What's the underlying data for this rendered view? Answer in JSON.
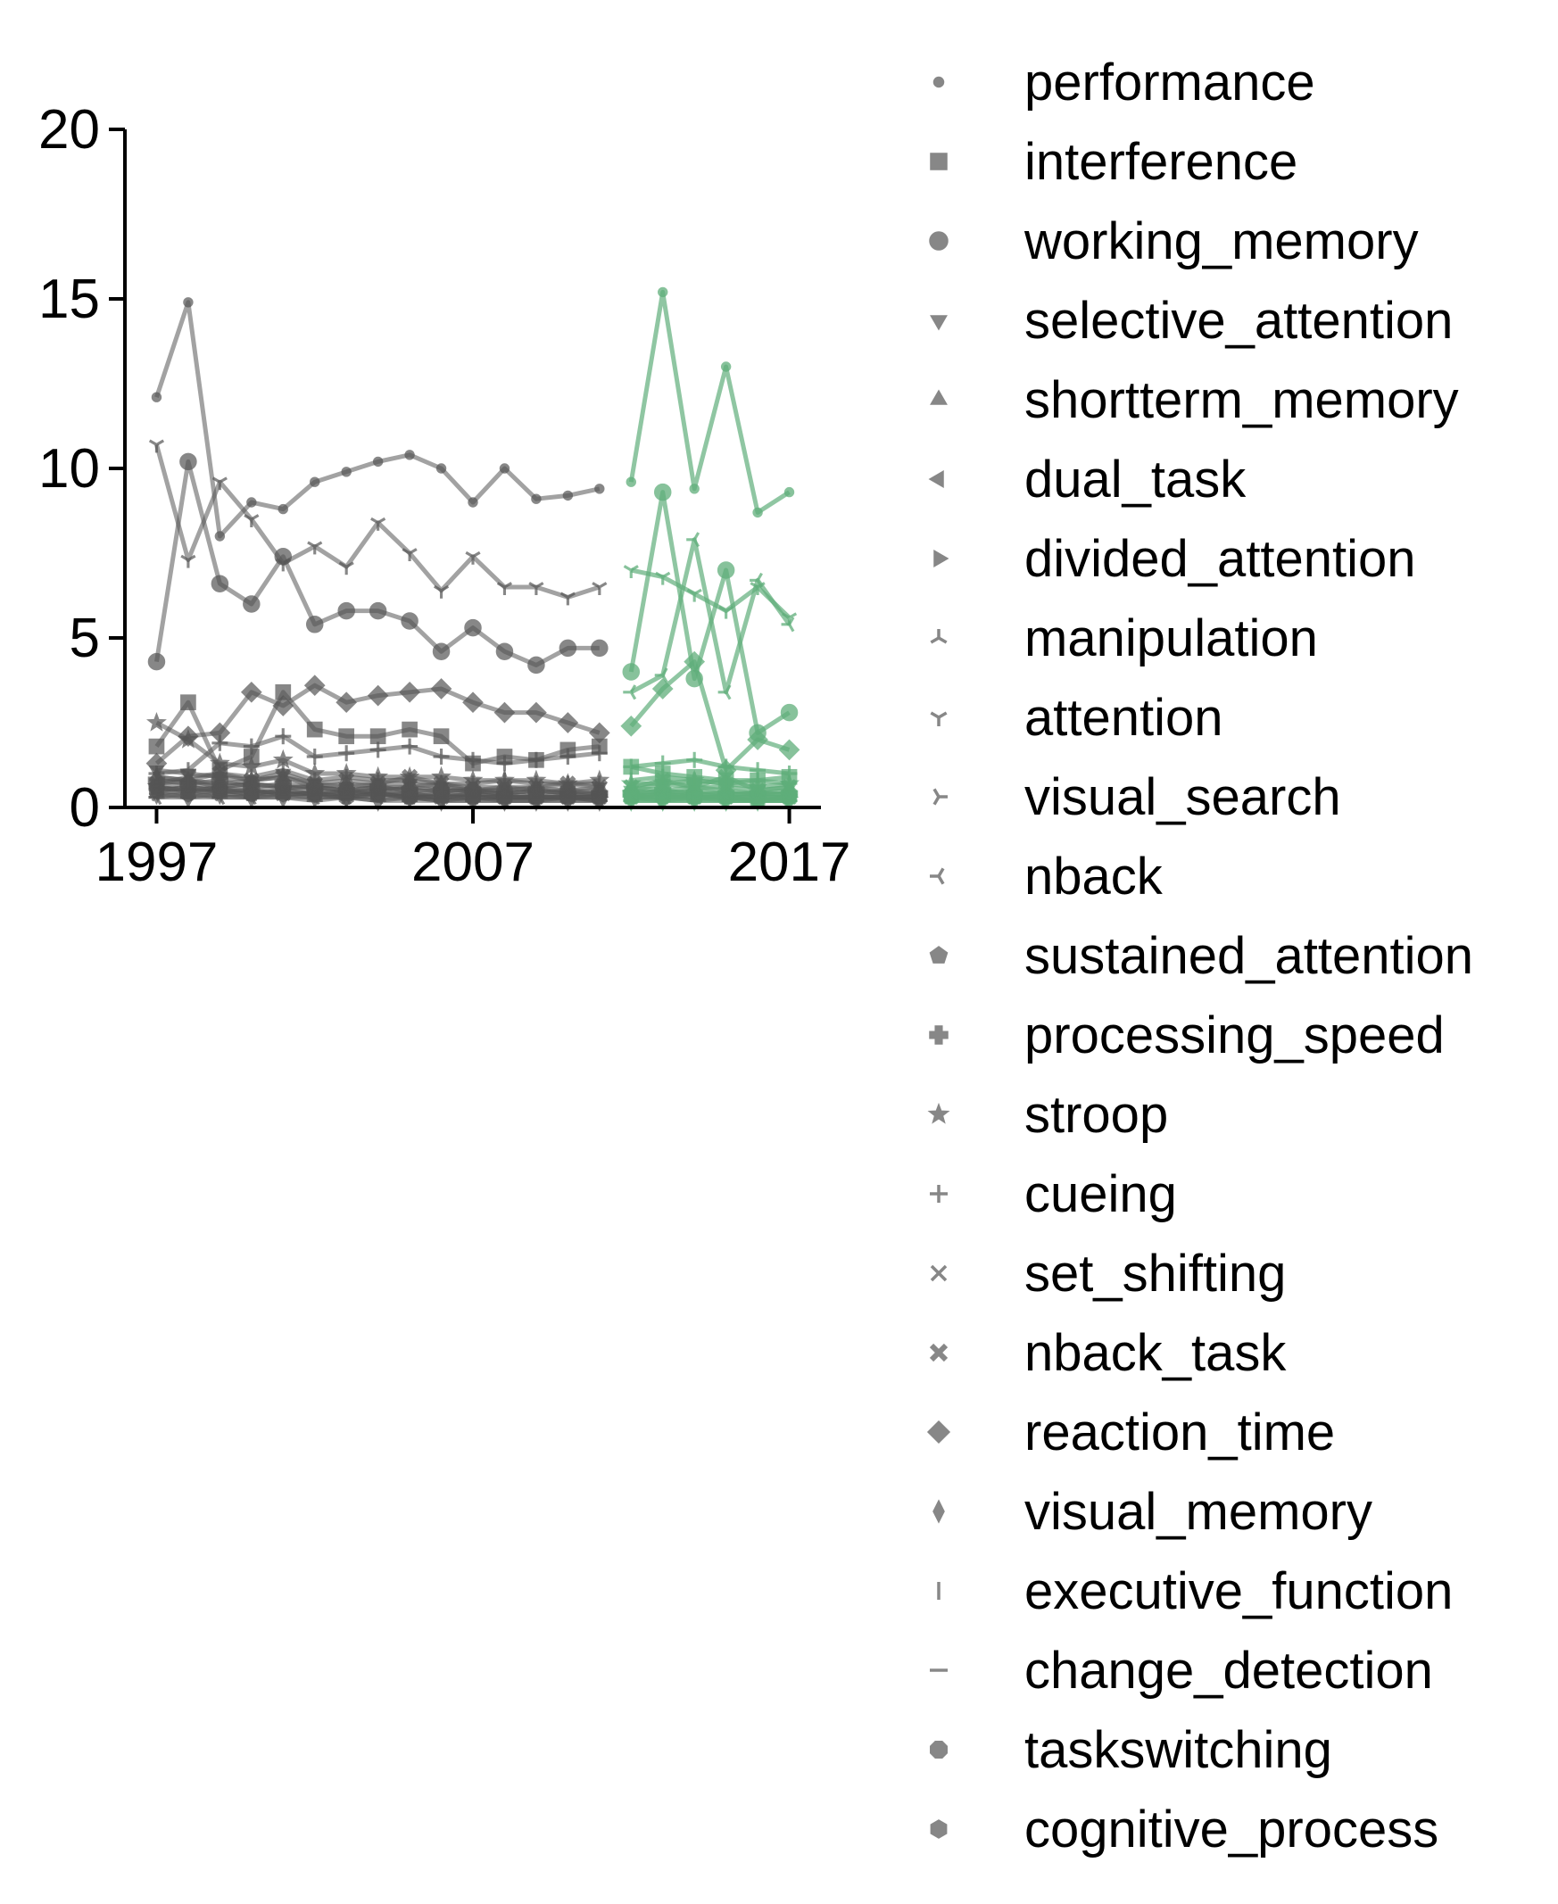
{
  "chart_data": {
    "type": "line",
    "title": "",
    "xlabel": "",
    "ylabel": "",
    "xlim": [
      1996,
      2018
    ],
    "ylim": [
      0,
      20
    ],
    "x_ticks": [
      1997,
      2007,
      2017
    ],
    "y_ticks": [
      0,
      5,
      10,
      15,
      20
    ],
    "grid": false,
    "legend_position": "right",
    "base_color": "#555555",
    "highlight_color": "#5fae7a",
    "highlight_from": 2012,
    "x": [
      1997,
      1998,
      1999,
      2000,
      2001,
      2002,
      2003,
      2004,
      2005,
      2006,
      2007,
      2008,
      2009,
      2010,
      2011,
      2012,
      2013,
      2014,
      2015,
      2016,
      2017
    ],
    "series": [
      {
        "name": "performance",
        "marker": "dot",
        "values": [
          12.1,
          14.9,
          8.0,
          9.0,
          8.8,
          9.6,
          9.9,
          10.2,
          10.4,
          10.0,
          9.0,
          10.0,
          9.1,
          9.2,
          9.4,
          9.6,
          15.2,
          9.4,
          13.0,
          8.7,
          9.3
        ]
      },
      {
        "name": "interference",
        "marker": "square",
        "values": [
          1.8,
          3.1,
          1.1,
          1.5,
          3.4,
          2.3,
          2.1,
          2.1,
          2.3,
          2.1,
          1.3,
          1.5,
          1.4,
          1.7,
          1.8,
          1.2,
          1.0,
          0.9,
          0.8,
          0.8,
          0.9
        ]
      },
      {
        "name": "working_memory",
        "marker": "circle",
        "values": [
          4.3,
          10.2,
          6.6,
          6.0,
          7.4,
          5.4,
          5.8,
          5.8,
          5.5,
          4.6,
          5.3,
          4.6,
          4.2,
          4.7,
          4.7,
          4.0,
          9.3,
          3.8,
          7.0,
          2.2,
          2.8
        ]
      },
      {
        "name": "selective_attention",
        "marker": "triangle-down",
        "values": [
          1.1,
          1.0,
          0.9,
          0.8,
          1.0,
          0.7,
          0.6,
          0.7,
          0.7,
          0.6,
          0.5,
          0.6,
          0.5,
          0.5,
          0.6,
          0.5,
          0.7,
          0.6,
          0.6,
          0.5,
          0.6
        ]
      },
      {
        "name": "shortterm_memory",
        "marker": "triangle-up",
        "values": [
          0.9,
          0.8,
          0.7,
          0.8,
          0.9,
          0.6,
          0.7,
          0.6,
          0.6,
          0.7,
          0.5,
          0.5,
          0.6,
          0.5,
          0.5,
          0.6,
          0.5,
          0.6,
          0.5,
          0.4,
          0.5
        ]
      },
      {
        "name": "dual_task",
        "marker": "triangle-left",
        "values": [
          0.7,
          0.8,
          0.6,
          0.7,
          0.6,
          0.6,
          0.5,
          0.5,
          0.6,
          0.5,
          0.5,
          0.4,
          0.5,
          0.4,
          0.4,
          0.5,
          0.4,
          0.5,
          0.4,
          0.4,
          0.4
        ]
      },
      {
        "name": "divided_attention",
        "marker": "triangle-right",
        "values": [
          0.6,
          0.5,
          0.6,
          0.5,
          0.6,
          0.5,
          0.4,
          0.5,
          0.4,
          0.4,
          0.4,
          0.4,
          0.3,
          0.4,
          0.3,
          0.4,
          0.3,
          0.4,
          0.3,
          0.3,
          0.3
        ]
      },
      {
        "name": "manipulation",
        "marker": "tri-down",
        "values": [
          0.5,
          0.6,
          0.5,
          0.5,
          0.4,
          0.4,
          0.5,
          0.4,
          0.4,
          0.3,
          0.4,
          0.3,
          0.3,
          0.3,
          0.3,
          0.3,
          0.4,
          0.3,
          0.3,
          0.3,
          0.3
        ]
      },
      {
        "name": "attention",
        "marker": "tri-up",
        "values": [
          10.7,
          7.3,
          9.6,
          8.5,
          7.2,
          7.7,
          7.1,
          8.4,
          7.5,
          6.4,
          7.4,
          6.5,
          6.5,
          6.2,
          6.5,
          7.0,
          6.8,
          6.3,
          5.8,
          6.5,
          5.6
        ]
      },
      {
        "name": "visual_search",
        "marker": "tri-left",
        "values": [
          0.4,
          0.5,
          0.4,
          0.4,
          0.5,
          0.4,
          0.3,
          0.4,
          0.3,
          0.3,
          0.3,
          0.3,
          0.3,
          0.3,
          0.2,
          0.3,
          0.2,
          0.3,
          0.2,
          0.2,
          0.2
        ]
      },
      {
        "name": "nback",
        "marker": "tri-right",
        "values": [
          0.3,
          0.4,
          0.3,
          0.3,
          0.4,
          0.3,
          0.3,
          0.3,
          0.3,
          0.2,
          0.3,
          0.2,
          0.2,
          0.3,
          0.2,
          3.4,
          3.9,
          7.9,
          3.4,
          6.7,
          5.4
        ]
      },
      {
        "name": "sustained_attention",
        "marker": "pentagon",
        "values": [
          0.6,
          0.5,
          0.5,
          0.4,
          0.5,
          0.4,
          0.4,
          0.4,
          0.3,
          0.4,
          0.3,
          0.3,
          0.3,
          0.3,
          0.3,
          0.3,
          0.3,
          0.3,
          0.3,
          0.2,
          0.3
        ]
      },
      {
        "name": "processing_speed",
        "marker": "plus-filled",
        "values": [
          0.8,
          0.7,
          0.8,
          0.6,
          0.7,
          0.6,
          0.5,
          0.6,
          0.5,
          0.5,
          0.5,
          0.4,
          0.5,
          0.4,
          0.4,
          0.4,
          0.5,
          0.4,
          0.4,
          0.4,
          0.4
        ]
      },
      {
        "name": "stroop",
        "marker": "star",
        "values": [
          2.5,
          2.0,
          1.3,
          1.2,
          1.4,
          1.0,
          1.0,
          0.9,
          0.9,
          0.9,
          0.8,
          0.8,
          0.8,
          0.7,
          0.8,
          0.7,
          0.7,
          0.8,
          0.7,
          0.6,
          0.7
        ]
      },
      {
        "name": "cueing",
        "marker": "plus",
        "values": [
          1.0,
          1.1,
          1.9,
          1.8,
          2.1,
          1.5,
          1.6,
          1.7,
          1.8,
          1.5,
          1.4,
          1.3,
          1.4,
          1.5,
          1.6,
          1.2,
          1.3,
          1.4,
          1.2,
          1.1,
          1.0
        ]
      },
      {
        "name": "set_shifting",
        "marker": "x",
        "values": [
          0.5,
          0.6,
          0.5,
          0.5,
          0.4,
          0.4,
          0.4,
          0.4,
          0.4,
          0.3,
          0.4,
          0.3,
          0.3,
          0.3,
          0.3,
          0.3,
          0.4,
          0.3,
          0.3,
          0.3,
          0.3
        ]
      },
      {
        "name": "nback_task",
        "marker": "x-filled",
        "values": [
          0.7,
          0.9,
          1.0,
          0.8,
          0.9,
          0.7,
          0.8,
          0.7,
          0.9,
          0.7,
          0.6,
          0.6,
          0.6,
          0.7,
          0.6,
          0.6,
          0.8,
          0.6,
          0.9,
          0.5,
          0.6
        ]
      },
      {
        "name": "reaction_time",
        "marker": "diamond",
        "values": [
          1.3,
          2.1,
          2.2,
          3.4,
          3.0,
          3.6,
          3.1,
          3.3,
          3.4,
          3.5,
          3.1,
          2.8,
          2.8,
          2.5,
          2.2,
          2.4,
          3.5,
          4.3,
          1.1,
          2.0,
          1.7
        ]
      },
      {
        "name": "visual_memory",
        "marker": "thin-diamond",
        "values": [
          0.4,
          0.3,
          0.4,
          0.3,
          0.3,
          0.3,
          0.3,
          0.2,
          0.3,
          0.2,
          0.2,
          0.2,
          0.2,
          0.2,
          0.2,
          0.2,
          0.2,
          0.2,
          0.2,
          0.2,
          0.2
        ]
      },
      {
        "name": "executive_function",
        "marker": "vline",
        "values": [
          0.9,
          0.8,
          1.0,
          0.9,
          1.1,
          0.8,
          0.9,
          0.8,
          0.8,
          0.7,
          0.7,
          0.8,
          0.7,
          0.7,
          0.7,
          0.8,
          0.9,
          0.8,
          0.7,
          0.8,
          0.7
        ]
      },
      {
        "name": "change_detection",
        "marker": "hline",
        "values": [
          0.3,
          0.3,
          0.3,
          0.3,
          0.3,
          0.2,
          0.3,
          0.2,
          0.2,
          0.2,
          0.2,
          0.2,
          0.2,
          0.2,
          0.2,
          0.2,
          0.2,
          0.2,
          0.2,
          0.2,
          0.2
        ]
      },
      {
        "name": "taskswitching",
        "marker": "octagon",
        "values": [
          0.6,
          0.7,
          0.6,
          0.7,
          0.6,
          0.6,
          0.5,
          0.6,
          0.5,
          0.5,
          0.5,
          0.5,
          0.4,
          0.5,
          0.4,
          0.4,
          0.5,
          0.4,
          0.4,
          0.4,
          0.4
        ]
      },
      {
        "name": "cognitive_process",
        "marker": "hexagon",
        "values": [
          0.5,
          0.4,
          0.5,
          0.4,
          0.4,
          0.4,
          0.3,
          0.4,
          0.3,
          0.3,
          0.3,
          0.3,
          0.3,
          0.3,
          0.3,
          0.3,
          0.3,
          0.3,
          0.3,
          0.2,
          0.3
        ]
      }
    ]
  }
}
